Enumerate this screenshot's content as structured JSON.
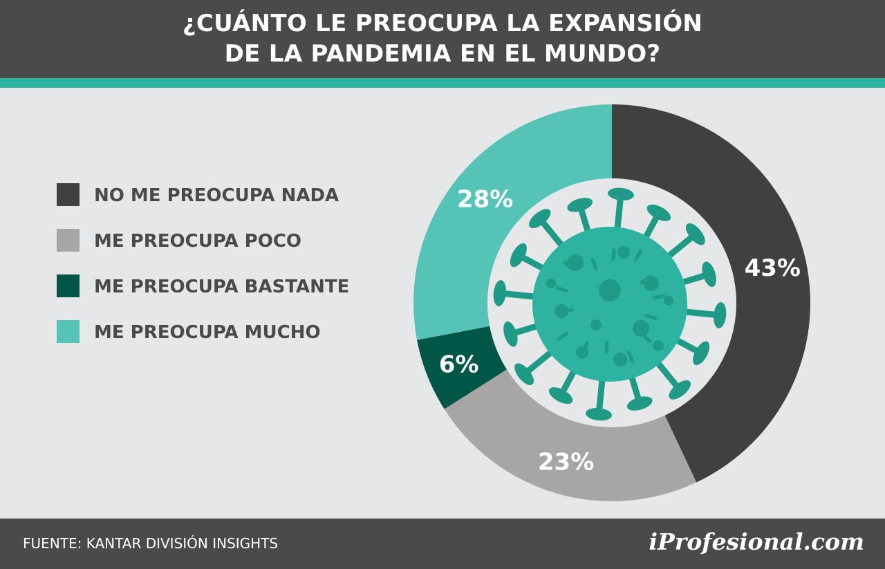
{
  "header": {
    "title_line1": "¿CUÁNTO LE PREOCUPA LA EXPANSIÓN",
    "title_line2": "DE LA PANDEMIA EN EL MUNDO?"
  },
  "colors": {
    "header_bg": "#4a4a4b",
    "accent": "#2bb5a1",
    "background": "#e6e7e8"
  },
  "chart_data": {
    "type": "pie",
    "title": "¿CUÁNTO LE PREOCUPA LA EXPANSIÓN DE LA PANDEMIA EN EL MUNDO?",
    "legend_position": "left",
    "donut": true,
    "center_icon": "virus-icon",
    "slices": [
      {
        "label": "NO ME PREOCUPA NADA",
        "value": 43,
        "display": "43%",
        "color": "#404041"
      },
      {
        "label": "ME PREOCUPA POCO",
        "value": 23,
        "display": "23%",
        "color": "#a7a6a4"
      },
      {
        "label": "ME PREOCUPA BASTANTE",
        "value": 6,
        "display": "6%",
        "color": "#005747"
      },
      {
        "label": "ME PREOCUPA MUCHO",
        "value": 28,
        "display": "28%",
        "color": "#55c4b6"
      }
    ]
  },
  "footer": {
    "source": "FUENTE:  KANTAR DIVISIÓN INSIGHTS",
    "brand": "iProfesional.com"
  }
}
